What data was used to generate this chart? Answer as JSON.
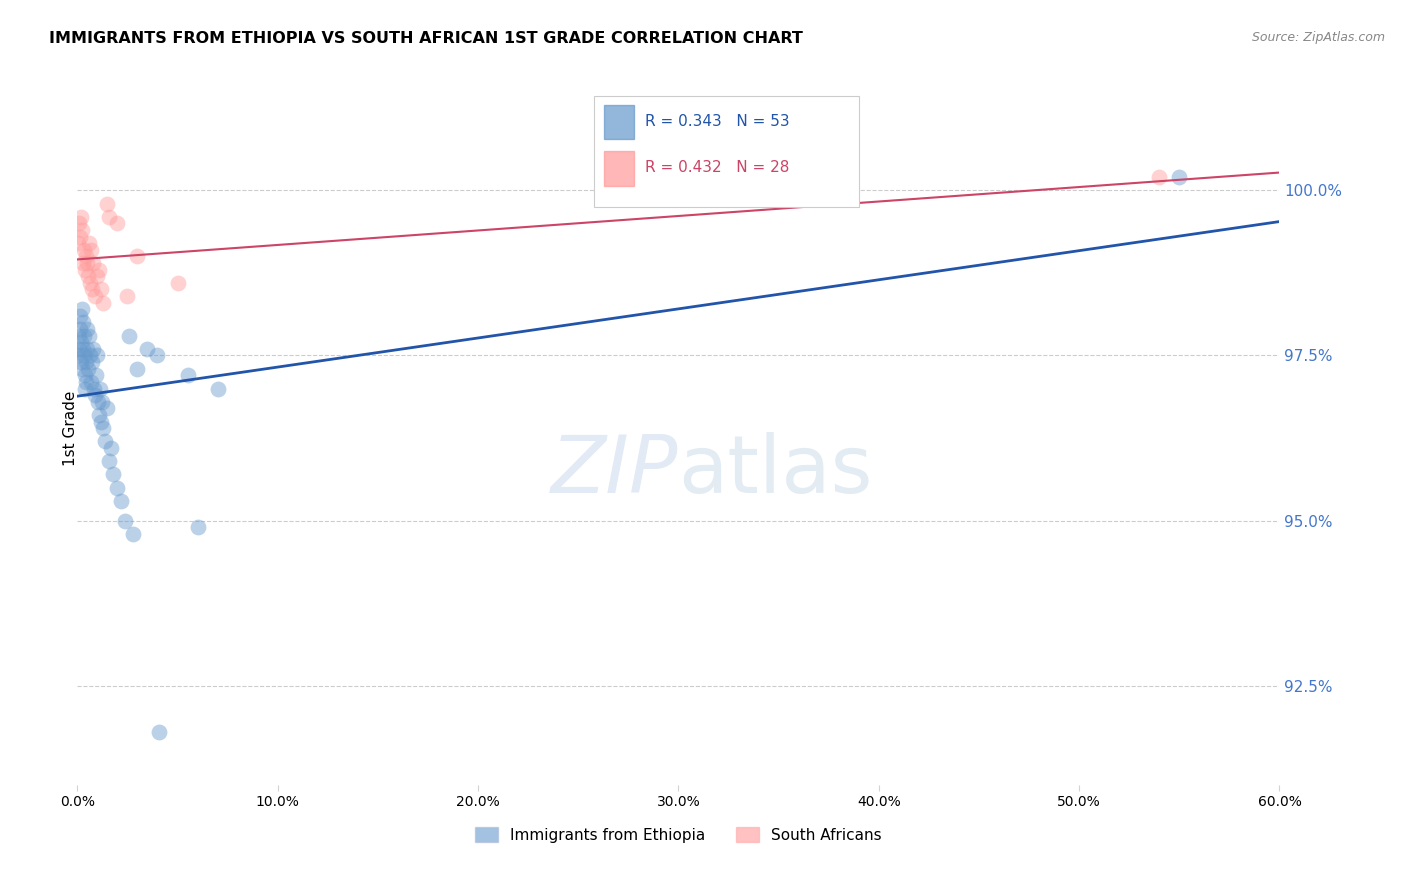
{
  "title": "IMMIGRANTS FROM ETHIOPIA VS SOUTH AFRICAN 1ST GRADE CORRELATION CHART",
  "source": "Source: ZipAtlas.com",
  "ylabel": "1st Grade",
  "blue_R": "0.343",
  "blue_N": "53",
  "pink_R": "0.432",
  "pink_N": "28",
  "xlim": [
    0.0,
    60.0
  ],
  "ylim": [
    91.0,
    101.8
  ],
  "yticks": [
    92.5,
    95.0,
    97.5,
    100.0
  ],
  "xticks": [
    0.0,
    10.0,
    20.0,
    30.0,
    40.0,
    50.0,
    60.0
  ],
  "xtick_labels": [
    "0.0%",
    "10.0%",
    "20.0%",
    "30.0%",
    "40.0%",
    "50.0%",
    "60.0%"
  ],
  "ytick_labels": [
    "92.5%",
    "95.0%",
    "97.5%",
    "100.0%"
  ],
  "blue_color": "#6699CC",
  "pink_color": "#FF9999",
  "blue_line_color": "#2255AA",
  "pink_line_color": "#CC4466",
  "watermark_zip": "ZIP",
  "watermark_atlas": "atlas",
  "blue_x": [
    0.05,
    0.08,
    0.1,
    0.12,
    0.15,
    0.18,
    0.2,
    0.22,
    0.25,
    0.28,
    0.3,
    0.32,
    0.35,
    0.38,
    0.4,
    0.42,
    0.45,
    0.48,
    0.5,
    0.55,
    0.6,
    0.65,
    0.7,
    0.75,
    0.8,
    0.85,
    0.9,
    0.95,
    1.0,
    1.05,
    1.1,
    1.15,
    1.2,
    1.25,
    1.3,
    1.4,
    1.5,
    1.6,
    1.7,
    1.8,
    2.0,
    2.2,
    2.4,
    2.6,
    2.8,
    3.0,
    3.5,
    4.0,
    4.1,
    5.5,
    6.0,
    7.0,
    55.0
  ],
  "blue_y": [
    97.5,
    97.8,
    97.6,
    97.9,
    98.1,
    97.4,
    97.7,
    98.2,
    97.3,
    97.6,
    98.0,
    97.5,
    97.8,
    97.2,
    97.0,
    97.4,
    97.1,
    97.6,
    97.9,
    97.3,
    97.8,
    97.5,
    97.1,
    97.4,
    97.6,
    97.0,
    96.9,
    97.2,
    97.5,
    96.8,
    96.6,
    97.0,
    96.5,
    96.8,
    96.4,
    96.2,
    96.7,
    95.9,
    96.1,
    95.7,
    95.5,
    95.3,
    95.0,
    97.8,
    94.8,
    97.3,
    97.6,
    97.5,
    91.8,
    97.2,
    94.9,
    97.0,
    100.2
  ],
  "pink_x": [
    0.05,
    0.1,
    0.15,
    0.2,
    0.25,
    0.3,
    0.35,
    0.4,
    0.45,
    0.5,
    0.55,
    0.6,
    0.65,
    0.7,
    0.75,
    0.8,
    0.9,
    1.0,
    1.1,
    1.2,
    1.3,
    1.5,
    1.6,
    2.0,
    2.5,
    3.0,
    5.0,
    54.0
  ],
  "pink_y": [
    99.2,
    99.5,
    99.3,
    99.6,
    99.4,
    98.9,
    99.1,
    98.8,
    99.0,
    98.9,
    98.7,
    99.2,
    98.6,
    99.1,
    98.5,
    98.9,
    98.4,
    98.7,
    98.8,
    98.5,
    98.3,
    99.8,
    99.6,
    99.5,
    98.4,
    99.0,
    98.6,
    100.2
  ]
}
